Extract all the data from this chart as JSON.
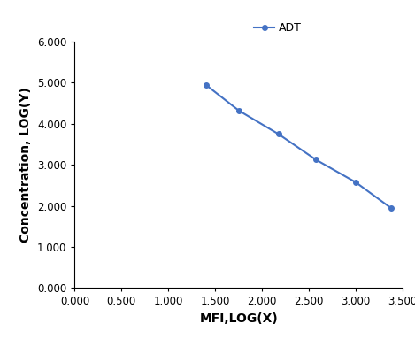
{
  "x": [
    1.4,
    1.75,
    2.175,
    2.575,
    3.0,
    3.375
  ],
  "y": [
    4.95,
    4.325,
    3.75,
    3.125,
    2.575,
    1.95
  ],
  "line_color": "#4472c4",
  "marker": "o",
  "marker_size": 4,
  "legend_label": "ADT",
  "xlabel": "MFI,LOG(X)",
  "ylabel": "Concentration, LOG(Y)",
  "xlim": [
    0.0,
    3.5
  ],
  "ylim": [
    0.0,
    6.0
  ],
  "xticks": [
    0.0,
    0.5,
    1.0,
    1.5,
    2.0,
    2.5,
    3.0,
    3.5
  ],
  "yticks": [
    0.0,
    1.0,
    2.0,
    3.0,
    4.0,
    5.0,
    6.0
  ],
  "axis_label_fontsize": 10,
  "tick_fontsize": 8.5,
  "legend_fontsize": 9,
  "background_color": "#ffffff",
  "figsize": [
    4.69,
    3.92
  ],
  "dpi": 100
}
